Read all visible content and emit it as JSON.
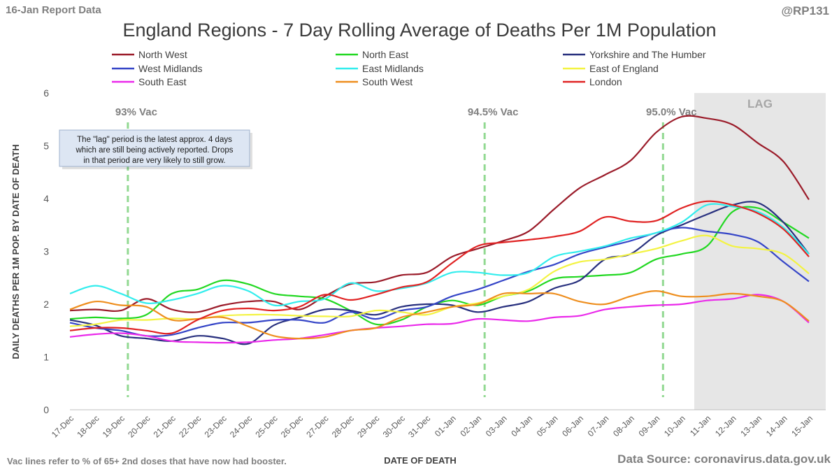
{
  "header": {
    "report_tag": "16-Jan Report Data",
    "handle": "@RP131",
    "title": "England Regions - 7 Day Rolling Average of Deaths Per 1M Population"
  },
  "footer": {
    "footnote": "Vac lines refer to % of 65+ 2nd doses that have now had booster.",
    "source": "Data Source: coronavirus.data.gov.uk"
  },
  "annotation": {
    "lines": [
      "The \"lag\" period is the latest approx. 4 days",
      "which are still being actively reported.  Drops",
      "in that period are very likely to still grow."
    ]
  },
  "chart_data": {
    "type": "line",
    "title": "England Regions - 7 Day Rolling Average of Deaths Per 1M Population",
    "xlabel": "DATE OF DEATH",
    "ylabel": "DAILY DEATHS PER 1M POP. BY DATE OF DEATH",
    "ylim": [
      0,
      6
    ],
    "yticks": [
      0,
      1,
      2,
      3,
      4,
      5,
      6
    ],
    "grid": false,
    "legend_position": "top",
    "categories": [
      "17-Dec",
      "18-Dec",
      "19-Dec",
      "20-Dec",
      "21-Dec",
      "22-Dec",
      "23-Dec",
      "24-Dec",
      "25-Dec",
      "26-Dec",
      "27-Dec",
      "28-Dec",
      "29-Dec",
      "30-Dec",
      "31-Dec",
      "01-Jan",
      "02-Jan",
      "03-Jan",
      "04-Jan",
      "05-Jan",
      "06-Jan",
      "07-Jan",
      "08-Jan",
      "09-Jan",
      "10-Jan",
      "11-Jan",
      "12-Jan",
      "13-Jan",
      "14-Jan",
      "15-Jan"
    ],
    "lag_region": {
      "from": "11-Jan",
      "to": "15-Jan",
      "label": "LAG",
      "color": "#e6e6e6"
    },
    "vac_lines": [
      {
        "date": "19-Dec",
        "label": "93% Vac"
      },
      {
        "date": "02-Jan",
        "label": "94.5% Vac"
      },
      {
        "date": "09-Jan",
        "label": "95.0% Vac"
      }
    ],
    "series": [
      {
        "name": "North West",
        "color": "#9b1c2a",
        "values": [
          1.88,
          1.9,
          1.88,
          2.1,
          1.9,
          1.85,
          1.98,
          2.05,
          2.05,
          1.9,
          2.15,
          2.38,
          2.42,
          2.55,
          2.6,
          2.9,
          3.05,
          3.2,
          3.38,
          3.8,
          4.2,
          4.45,
          4.72,
          5.25,
          5.55,
          5.52,
          5.4,
          5.05,
          4.7,
          3.98
        ]
      },
      {
        "name": "North East",
        "color": "#22d822",
        "values": [
          1.72,
          1.75,
          1.73,
          1.8,
          2.2,
          2.28,
          2.45,
          2.38,
          2.2,
          2.15,
          2.1,
          1.88,
          1.62,
          1.7,
          1.95,
          2.07,
          1.98,
          2.15,
          2.25,
          2.48,
          2.52,
          2.55,
          2.6,
          2.85,
          2.95,
          3.1,
          3.75,
          3.82,
          3.55,
          3.25
        ]
      },
      {
        "name": "Yorkshire and The Humber",
        "color": "#28307e",
        "values": [
          1.7,
          1.6,
          1.4,
          1.35,
          1.3,
          1.4,
          1.35,
          1.25,
          1.6,
          1.75,
          1.9,
          1.88,
          1.8,
          1.95,
          2.0,
          1.98,
          1.85,
          1.95,
          2.05,
          2.3,
          2.45,
          2.85,
          2.95,
          3.3,
          3.5,
          3.7,
          3.88,
          3.92,
          3.55,
          2.95
        ]
      },
      {
        "name": "West Midlands",
        "color": "#3545c7",
        "values": [
          1.65,
          1.55,
          1.5,
          1.4,
          1.42,
          1.55,
          1.65,
          1.65,
          1.7,
          1.7,
          1.65,
          1.85,
          1.72,
          1.88,
          1.95,
          2.15,
          2.28,
          2.45,
          2.62,
          2.75,
          2.95,
          3.08,
          3.2,
          3.35,
          3.45,
          3.38,
          3.32,
          3.18,
          2.8,
          2.43
        ]
      },
      {
        "name": "East Midlands",
        "color": "#32eded",
        "values": [
          2.2,
          2.35,
          2.2,
          2.02,
          2.08,
          2.2,
          2.35,
          2.25,
          1.98,
          2.05,
          2.1,
          2.4,
          2.25,
          2.3,
          2.4,
          2.6,
          2.6,
          2.55,
          2.6,
          2.9,
          3.0,
          3.1,
          3.25,
          3.35,
          3.55,
          3.88,
          3.85,
          3.75,
          3.45,
          2.95
        ]
      },
      {
        "name": "East of England",
        "color": "#f3f342",
        "values": [
          1.58,
          1.62,
          1.7,
          1.7,
          1.73,
          1.72,
          1.78,
          1.8,
          1.8,
          1.78,
          1.77,
          1.77,
          1.88,
          1.85,
          1.8,
          1.95,
          2.02,
          2.15,
          2.28,
          2.62,
          2.8,
          2.85,
          2.95,
          3.05,
          3.2,
          3.3,
          3.1,
          3.05,
          2.95,
          2.58
        ]
      },
      {
        "name": "South East",
        "color": "#ea29ea",
        "values": [
          1.38,
          1.43,
          1.45,
          1.4,
          1.3,
          1.28,
          1.27,
          1.28,
          1.32,
          1.35,
          1.42,
          1.5,
          1.55,
          1.58,
          1.62,
          1.63,
          1.72,
          1.7,
          1.68,
          1.75,
          1.78,
          1.9,
          1.95,
          1.98,
          2.0,
          2.07,
          2.1,
          2.18,
          2.05,
          1.65
        ]
      },
      {
        "name": "South West",
        "color": "#ee8e1e",
        "values": [
          1.9,
          2.05,
          1.98,
          1.95,
          1.7,
          1.72,
          1.75,
          1.58,
          1.4,
          1.35,
          1.38,
          1.5,
          1.55,
          1.75,
          1.85,
          1.95,
          2.0,
          2.2,
          2.2,
          2.2,
          2.05,
          2.0,
          2.15,
          2.25,
          2.15,
          2.15,
          2.2,
          2.15,
          2.05,
          1.68
        ]
      },
      {
        "name": "London",
        "color": "#e02323",
        "values": [
          1.5,
          1.55,
          1.55,
          1.5,
          1.45,
          1.7,
          1.88,
          1.92,
          1.88,
          1.95,
          2.18,
          2.08,
          2.18,
          2.32,
          2.42,
          2.78,
          3.1,
          3.17,
          3.22,
          3.28,
          3.38,
          3.65,
          3.57,
          3.58,
          3.82,
          3.95,
          3.88,
          3.72,
          3.42,
          2.9
        ]
      }
    ]
  }
}
